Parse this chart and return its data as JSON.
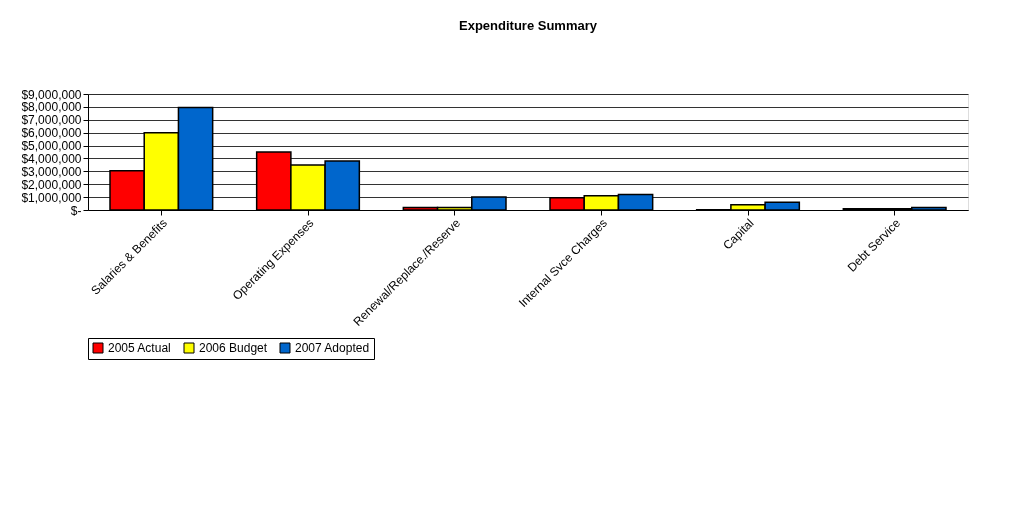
{
  "chart_data": {
    "type": "bar",
    "title": "Expenditure Summary",
    "categories": [
      "Salaries & Benefits",
      "Operating Expenses",
      "Renewal/Replace./Reserve",
      "Internal Svce Charges",
      "Capital",
      "Debt Service"
    ],
    "series": [
      {
        "name": "2005 Actual",
        "color": "#ff0000",
        "values": [
          3050000,
          4500000,
          200000,
          950000,
          20000,
          100000
        ]
      },
      {
        "name": "2006 Budget",
        "color": "#ffff00",
        "values": [
          6000000,
          3500000,
          200000,
          1100000,
          400000,
          100000
        ]
      },
      {
        "name": "2007 Adopted",
        "color": "#0066cc",
        "values": [
          7950000,
          3800000,
          1000000,
          1200000,
          600000,
          200000
        ]
      }
    ],
    "ylim": [
      0,
      9000000
    ],
    "yticks": [
      {
        "value": 0,
        "label": "$-"
      },
      {
        "value": 1000000,
        "label": "$1,000,000"
      },
      {
        "value": 2000000,
        "label": "$2,000,000"
      },
      {
        "value": 3000000,
        "label": "$3,000,000"
      },
      {
        "value": 4000000,
        "label": "$4,000,000"
      },
      {
        "value": 5000000,
        "label": "$5,000,000"
      },
      {
        "value": 6000000,
        "label": "$6,000,000"
      },
      {
        "value": 7000000,
        "label": "$7,000,000"
      },
      {
        "value": 8000000,
        "label": "$8,000,000"
      },
      {
        "value": 9000000,
        "label": "$9,000,000"
      }
    ],
    "grid": "y",
    "legend": "bottom"
  }
}
